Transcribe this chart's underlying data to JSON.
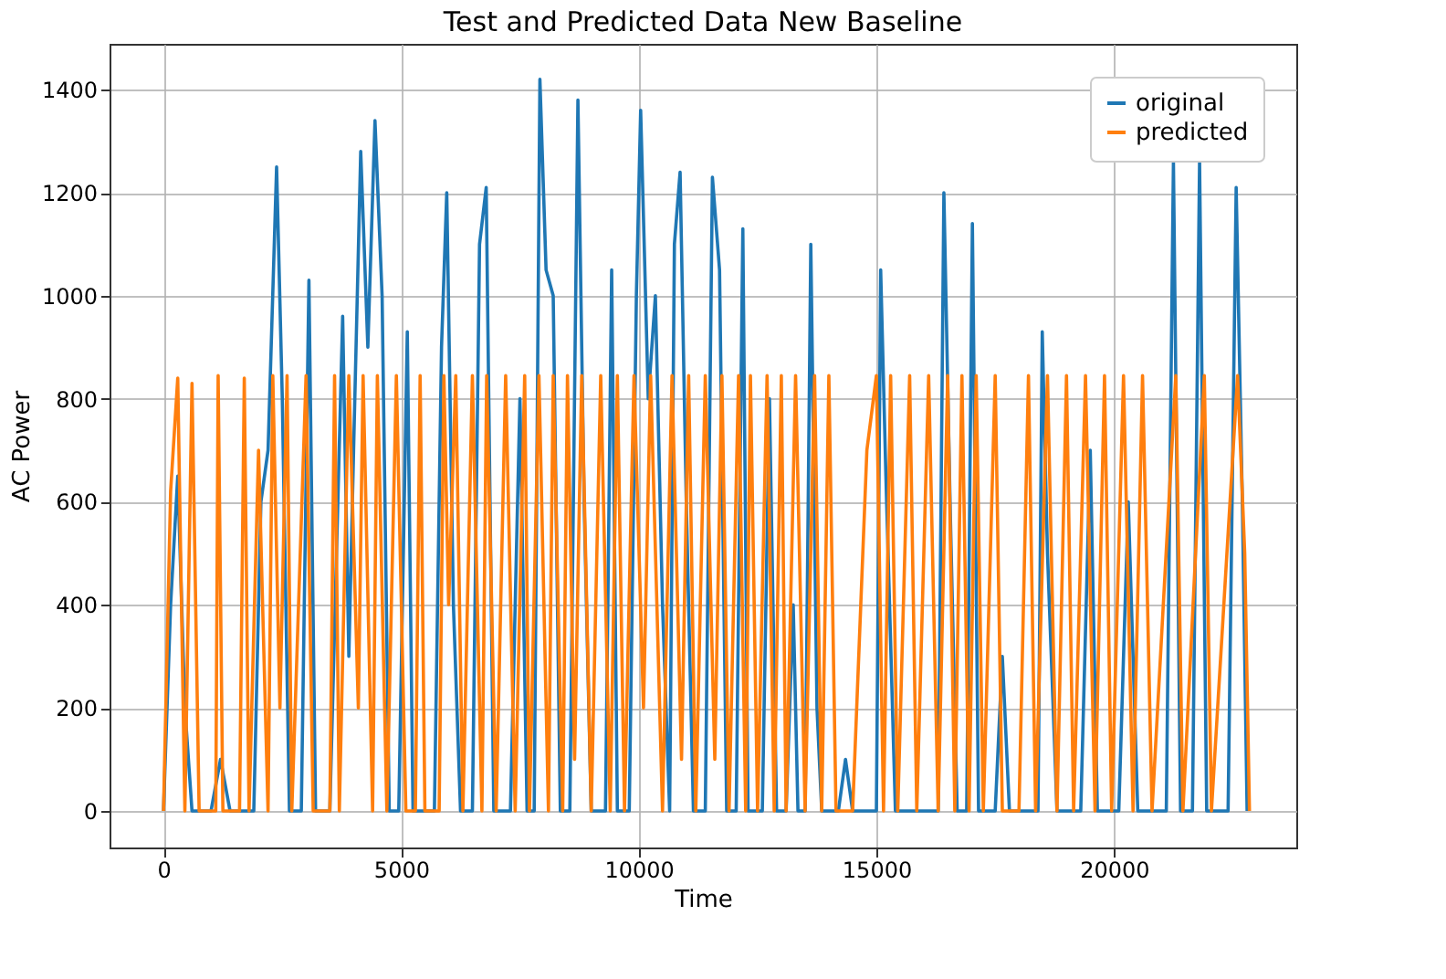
{
  "chart_data": {
    "type": "line",
    "title": "Test and Predicted Data New Baseline",
    "xlabel": "Time",
    "ylabel": "AC Power",
    "xlim": [
      -1135,
      23835
    ],
    "ylim": [
      -71,
      1489
    ],
    "xticks": [
      0,
      5000,
      10000,
      15000,
      20000
    ],
    "yticks": [
      0,
      200,
      400,
      600,
      800,
      1000,
      1200,
      1400
    ],
    "grid": true,
    "legend": "top right",
    "line_style": "solid",
    "marker": "none",
    "series": [
      {
        "name": "original",
        "color": "#1f77b4",
        "x": [
          0,
          150,
          300,
          450,
          600,
          1000,
          1200,
          1400,
          1900,
          2050,
          2200,
          2380,
          2500,
          2650,
          2900,
          3060,
          3200,
          3500,
          3770,
          3900,
          4000,
          4150,
          4300,
          4450,
          4600,
          4750,
          4950,
          5130,
          5250,
          5700,
          5850,
          5960,
          6100,
          6250,
          6500,
          6650,
          6790,
          6950,
          7300,
          7500,
          7650,
          7800,
          7920,
          8050,
          8200,
          8350,
          8550,
          8720,
          8850,
          9000,
          9300,
          9430,
          9550,
          9800,
          9950,
          10040,
          10200,
          10350,
          10500,
          10650,
          10750,
          10870,
          11000,
          11150,
          11400,
          11550,
          11700,
          11850,
          12050,
          12190,
          12300,
          12600,
          12750,
          12900,
          13100,
          13250,
          13350,
          13500,
          13620,
          13750,
          13850,
          14200,
          14350,
          14500,
          15000,
          15090,
          15200,
          15400,
          16300,
          16420,
          16550,
          16700,
          16900,
          17020,
          17150,
          17500,
          17650,
          17800,
          18400,
          18490,
          18600,
          18800,
          19300,
          19500,
          19650,
          20100,
          20300,
          20500,
          21100,
          21250,
          21400,
          21650,
          21800,
          21950,
          22400,
          22570,
          22700,
          22800
        ],
        "values": [
          0,
          400,
          650,
          200,
          0,
          0,
          100,
          0,
          0,
          600,
          700,
          1250,
          800,
          0,
          0,
          1030,
          0,
          0,
          960,
          300,
          700,
          1280,
          900,
          1340,
          1000,
          0,
          0,
          930,
          0,
          0,
          900,
          1200,
          400,
          0,
          0,
          1100,
          1210,
          0,
          0,
          800,
          0,
          0,
          1420,
          1050,
          1000,
          0,
          0,
          1380,
          600,
          0,
          0,
          1050,
          0,
          0,
          1000,
          1360,
          800,
          1000,
          400,
          0,
          1100,
          1240,
          600,
          0,
          0,
          1230,
          1050,
          0,
          0,
          1130,
          0,
          0,
          800,
          0,
          0,
          400,
          0,
          0,
          1100,
          200,
          0,
          0,
          100,
          0,
          0,
          1050,
          650,
          0,
          0,
          1200,
          600,
          0,
          0,
          1140,
          0,
          0,
          300,
          0,
          0,
          930,
          500,
          0,
          0,
          700,
          0,
          0,
          600,
          0,
          0,
          1260,
          0,
          0,
          1260,
          0,
          0,
          1210,
          600,
          0
        ]
      },
      {
        "name": "predicted",
        "color": "#ff7f0e",
        "x": [
          0,
          150,
          300,
          450,
          600,
          750,
          1100,
          1150,
          1250,
          1600,
          1700,
          1800,
          2000,
          2200,
          2300,
          2450,
          2600,
          2700,
          3000,
          3150,
          3500,
          3600,
          3700,
          3900,
          4100,
          4200,
          4400,
          4500,
          4700,
          4900,
          5100,
          5300,
          5400,
          5500,
          5800,
          5900,
          6000,
          6150,
          6300,
          6500,
          6700,
          6800,
          7000,
          7200,
          7400,
          7600,
          7700,
          7900,
          8100,
          8200,
          8400,
          8500,
          8650,
          8800,
          9000,
          9200,
          9400,
          9550,
          9700,
          9900,
          10100,
          10250,
          10500,
          10700,
          10900,
          11050,
          11200,
          11400,
          11600,
          11750,
          11900,
          12100,
          12250,
          12350,
          12500,
          12700,
          12850,
          13000,
          13100,
          13300,
          13500,
          13700,
          13850,
          14000,
          14150,
          14500,
          14800,
          15000,
          15150,
          15300,
          15450,
          15700,
          15850,
          16100,
          16300,
          16500,
          16650,
          16800,
          16950,
          17100,
          17250,
          17500,
          17650,
          18000,
          18200,
          18350,
          18600,
          18800,
          19000,
          19150,
          19400,
          19600,
          19800,
          19950,
          20200,
          20400,
          20600,
          20800,
          21300,
          21450,
          21900,
          22050,
          22600,
          22750,
          22850
        ],
        "values": [
          0,
          620,
          840,
          0,
          830,
          0,
          0,
          845,
          0,
          0,
          840,
          0,
          700,
          0,
          845,
          200,
          845,
          0,
          845,
          0,
          0,
          845,
          0,
          845,
          200,
          845,
          0,
          845,
          0,
          845,
          0,
          0,
          845,
          0,
          0,
          845,
          400,
          845,
          0,
          845,
          0,
          845,
          0,
          845,
          0,
          845,
          0,
          845,
          0,
          845,
          0,
          845,
          100,
          845,
          0,
          845,
          0,
          845,
          0,
          845,
          200,
          845,
          0,
          845,
          100,
          845,
          0,
          845,
          100,
          845,
          0,
          845,
          0,
          845,
          0,
          845,
          0,
          845,
          0,
          845,
          0,
          845,
          0,
          845,
          0,
          0,
          700,
          845,
          0,
          845,
          0,
          845,
          0,
          845,
          0,
          845,
          0,
          845,
          0,
          845,
          0,
          845,
          0,
          0,
          845,
          0,
          845,
          0,
          845,
          0,
          845,
          0,
          845,
          0,
          845,
          0,
          845,
          0,
          845,
          0,
          845,
          0,
          845,
          500,
          0
        ]
      }
    ]
  }
}
